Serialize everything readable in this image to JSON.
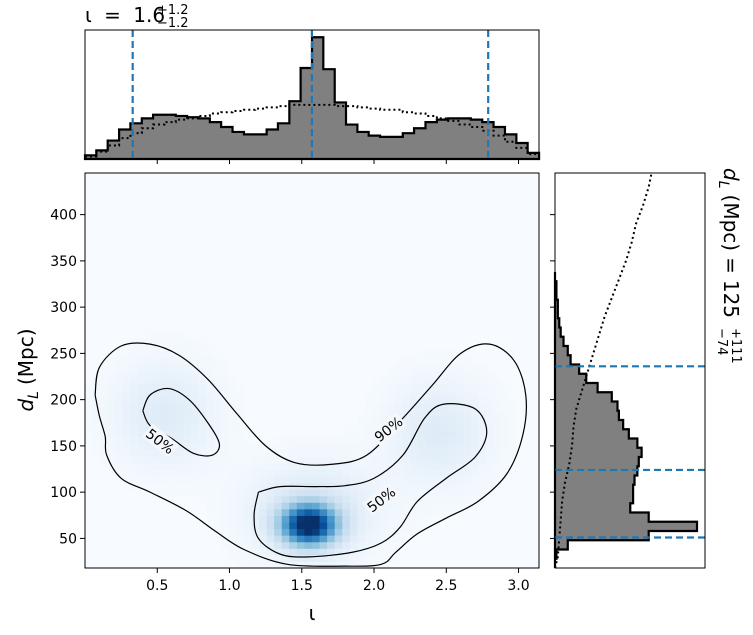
{
  "chart_data": [
    {
      "type": "histogram",
      "panel": "iota-marginal",
      "title": {
        "symbol": "ι",
        "equals": "=",
        "median": "1.6",
        "upper": "+1.2",
        "lower": "−1.2"
      },
      "xlim": [
        0.0,
        3.14159
      ],
      "bins": [
        0.0,
        0.0785,
        0.157,
        0.236,
        0.314,
        0.393,
        0.471,
        0.55,
        0.628,
        0.707,
        0.785,
        0.864,
        0.942,
        1.021,
        1.1,
        1.178,
        1.257,
        1.335,
        1.414,
        1.492,
        1.571,
        1.649,
        1.728,
        1.806,
        1.885,
        1.963,
        2.042,
        2.12,
        2.199,
        2.277,
        2.356,
        2.435,
        2.513,
        2.592,
        2.67,
        2.749,
        2.827,
        2.906,
        2.985,
        3.063,
        3.142
      ],
      "posterior": [
        0.03,
        0.07,
        0.15,
        0.24,
        0.29,
        0.33,
        0.36,
        0.36,
        0.35,
        0.34,
        0.33,
        0.3,
        0.26,
        0.22,
        0.2,
        0.2,
        0.24,
        0.29,
        0.47,
        0.74,
        0.99,
        0.73,
        0.46,
        0.28,
        0.22,
        0.19,
        0.18,
        0.18,
        0.21,
        0.25,
        0.3,
        0.32,
        0.33,
        0.33,
        0.32,
        0.3,
        0.26,
        0.2,
        0.13,
        0.05
      ],
      "prior": [
        0.02,
        0.06,
        0.11,
        0.17,
        0.21,
        0.25,
        0.28,
        0.3,
        0.32,
        0.33,
        0.35,
        0.37,
        0.38,
        0.39,
        0.4,
        0.41,
        0.42,
        0.43,
        0.44,
        0.44,
        0.44,
        0.44,
        0.43,
        0.43,
        0.42,
        0.41,
        0.4,
        0.4,
        0.38,
        0.37,
        0.35,
        0.33,
        0.31,
        0.28,
        0.26,
        0.23,
        0.19,
        0.14,
        0.09,
        0.04
      ],
      "quantile_lines": [
        0.33,
        1.57,
        2.79
      ]
    },
    {
      "type": "heatmap",
      "panel": "joint",
      "xlabel": "ι",
      "ylabel": {
        "var": "d",
        "sub": "L",
        "unit": "(Mpc)"
      },
      "xlim": [
        0.0,
        3.14159
      ],
      "ylim": [
        18,
        445
      ],
      "xticks": [
        0.5,
        1.0,
        1.5,
        2.0,
        2.5,
        3.0
      ],
      "xtick_labels": [
        "0.5",
        "1.0",
        "1.5",
        "2.0",
        "2.5",
        "3.0"
      ],
      "yticks": [
        50,
        100,
        150,
        200,
        250,
        300,
        350,
        400
      ],
      "ytick_labels": [
        "50",
        "100",
        "150",
        "200",
        "250",
        "300",
        "350",
        "400"
      ],
      "colormap": "Blues",
      "density_components": [
        {
          "x": 1.55,
          "y": 65,
          "sx": 0.13,
          "sy": 15,
          "weight": 1.0
        },
        {
          "x": 1.57,
          "y": 80,
          "sx": 0.3,
          "sy": 35,
          "weight": 0.16
        },
        {
          "x": 0.55,
          "y": 185,
          "sx": 0.25,
          "sy": 40,
          "weight": 0.12
        },
        {
          "x": 2.45,
          "y": 165,
          "sx": 0.25,
          "sy": 40,
          "weight": 0.12
        }
      ],
      "contours": [
        {
          "level": "90%",
          "label_at": [
            2.1,
            168
          ],
          "label_angle": -38,
          "points": [
            [
              0.07,
              205
            ],
            [
              0.1,
              235
            ],
            [
              0.25,
              258
            ],
            [
              0.45,
              260
            ],
            [
              0.65,
              248
            ],
            [
              0.85,
              222
            ],
            [
              1.05,
              185
            ],
            [
              1.25,
              150
            ],
            [
              1.45,
              132
            ],
            [
              1.7,
              130
            ],
            [
              1.95,
              140
            ],
            [
              2.2,
              180
            ],
            [
              2.4,
              215
            ],
            [
              2.6,
              250
            ],
            [
              2.8,
              260
            ],
            [
              2.97,
              242
            ],
            [
              3.05,
              205
            ],
            [
              3.03,
              162
            ],
            [
              2.92,
              120
            ],
            [
              2.72,
              90
            ],
            [
              2.5,
              72
            ],
            [
              2.3,
              55
            ],
            [
              2.15,
              35
            ],
            [
              2.05,
              22
            ],
            [
              1.8,
              20
            ],
            [
              1.4,
              22
            ],
            [
              1.1,
              38
            ],
            [
              0.9,
              58
            ],
            [
              0.7,
              80
            ],
            [
              0.45,
              100
            ],
            [
              0.25,
              115
            ],
            [
              0.15,
              140
            ],
            [
              0.14,
              160
            ],
            [
              0.1,
              182
            ],
            [
              0.07,
              205
            ]
          ]
        },
        {
          "level": "50%",
          "label_at": [
            0.52,
            155
          ],
          "label_angle": 38,
          "points": [
            [
              0.4,
              188
            ],
            [
              0.45,
              205
            ],
            [
              0.58,
              212
            ],
            [
              0.72,
              200
            ],
            [
              0.85,
              175
            ],
            [
              0.93,
              152
            ],
            [
              0.88,
              140
            ],
            [
              0.75,
              142
            ],
            [
              0.6,
              158
            ],
            [
              0.45,
              172
            ],
            [
              0.4,
              188
            ]
          ]
        },
        {
          "level": "50%",
          "label_at": [
            2.05,
            92
          ],
          "label_angle": -38,
          "points": [
            [
              1.2,
              100
            ],
            [
              1.35,
              106
            ],
            [
              1.6,
              106
            ],
            [
              1.8,
              107
            ],
            [
              2.0,
              115
            ],
            [
              2.2,
              140
            ],
            [
              2.35,
              180
            ],
            [
              2.48,
              195
            ],
            [
              2.7,
              190
            ],
            [
              2.78,
              165
            ],
            [
              2.7,
              138
            ],
            [
              2.5,
              115
            ],
            [
              2.3,
              90
            ],
            [
              2.18,
              62
            ],
            [
              2.05,
              45
            ],
            [
              1.85,
              35
            ],
            [
              1.55,
              30
            ],
            [
              1.35,
              33
            ],
            [
              1.2,
              50
            ],
            [
              1.17,
              75
            ],
            [
              1.2,
              100
            ]
          ]
        }
      ]
    },
    {
      "type": "histogram",
      "panel": "distance-marginal",
      "orientation": "horizontal",
      "title": {
        "var": "d",
        "sub": "L",
        "unit": "(Mpc)",
        "equals": "=",
        "median": "125",
        "upper": "+111",
        "lower": "−74"
      },
      "ylim": [
        18,
        445
      ],
      "bins": [
        18,
        28,
        38,
        48,
        58,
        68,
        78,
        88,
        98,
        108,
        118,
        128,
        138,
        148,
        158,
        168,
        178,
        188,
        198,
        208,
        218,
        228,
        238,
        248,
        258,
        268,
        278,
        288,
        298,
        308,
        318,
        328,
        338
      ],
      "posterior": [
        0.0,
        0.01,
        0.09,
        0.66,
        1.0,
        0.66,
        0.53,
        0.55,
        0.55,
        0.56,
        0.58,
        0.59,
        0.61,
        0.58,
        0.52,
        0.48,
        0.45,
        0.44,
        0.4,
        0.3,
        0.22,
        0.17,
        0.11,
        0.09,
        0.06,
        0.04,
        0.03,
        0.02,
        0.02,
        0.01,
        0.01,
        0.0
      ],
      "prior_curve": [
        [
          0.0,
          18
        ],
        [
          0.02,
          30
        ],
        [
          0.03,
          50
        ],
        [
          0.04,
          70
        ],
        [
          0.05,
          90
        ],
        [
          0.07,
          110
        ],
        [
          0.1,
          130
        ],
        [
          0.12,
          150
        ],
        [
          0.13,
          170
        ],
        [
          0.15,
          190
        ],
        [
          0.19,
          210
        ],
        [
          0.23,
          230
        ],
        [
          0.27,
          250
        ],
        [
          0.31,
          270
        ],
        [
          0.35,
          290
        ],
        [
          0.4,
          310
        ],
        [
          0.45,
          330
        ],
        [
          0.5,
          350
        ],
        [
          0.54,
          370
        ],
        [
          0.57,
          390
        ],
        [
          0.62,
          410
        ],
        [
          0.66,
          430
        ],
        [
          0.68,
          445
        ]
      ],
      "quantile_lines": [
        51,
        124,
        236
      ]
    }
  ]
}
